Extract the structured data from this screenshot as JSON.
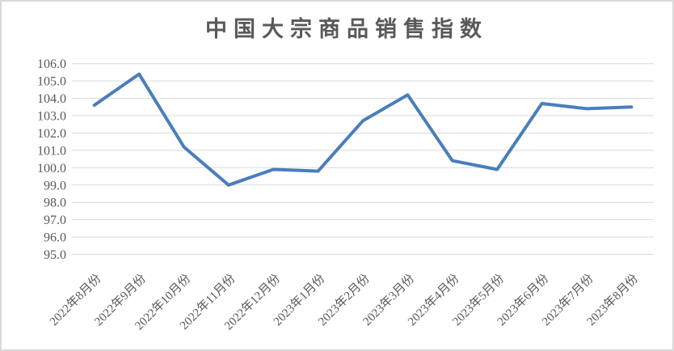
{
  "chart_data": {
    "type": "line",
    "title": "中国大宗商品销售指数",
    "categories": [
      "2022年8月份",
      "2022年9月份",
      "2022年10月份",
      "2022年11月份",
      "2022年12月份",
      "2023年1月份",
      "2023年2月份",
      "2023年3月份",
      "2023年4月份",
      "2023年5月份",
      "2023年6月份",
      "2023年7月份",
      "2023年8月份"
    ],
    "series": [
      {
        "name": "销售指数",
        "values": [
          103.6,
          105.4,
          101.2,
          99.0,
          99.9,
          99.8,
          102.7,
          104.2,
          100.4,
          99.9,
          103.7,
          103.4,
          103.5
        ]
      }
    ],
    "xlabel": "",
    "ylabel": "",
    "ylim": [
      95.0,
      106.0
    ],
    "y_tick_step": 1.0,
    "y_ticks": [
      "106.0",
      "105.0",
      "104.0",
      "103.0",
      "102.0",
      "101.0",
      "100.0",
      "99.0",
      "98.0",
      "97.0",
      "96.0",
      "95.0"
    ],
    "grid": true,
    "legend": "none",
    "x_label_rotation": -45,
    "colors": {
      "line": "#4a7ebb",
      "grid": "#d9d9d9",
      "text": "#595959",
      "background": "#ffffff",
      "border": "#d9d9d9"
    }
  }
}
